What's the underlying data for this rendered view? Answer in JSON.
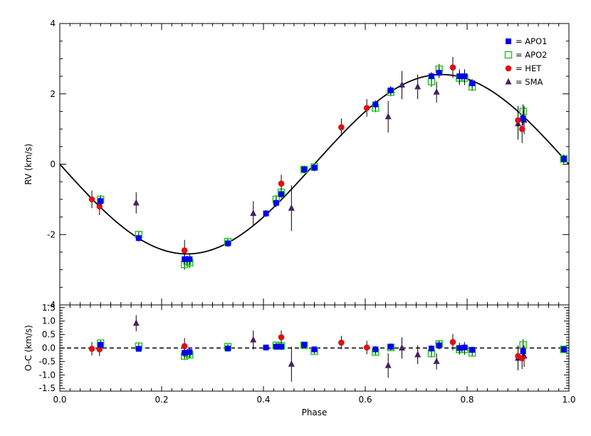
{
  "chart_data": [
    {
      "type": "scatter",
      "panel": "rv",
      "xlabel": "",
      "ylabel": "RV (km/s)",
      "xlim": [
        0.0,
        1.0
      ],
      "ylim": [
        -4,
        4
      ],
      "xticks": [
        "0.0",
        "0.2",
        "0.4",
        "0.6",
        "0.8",
        "1.0"
      ],
      "yticks": [
        "-4",
        "-2",
        "0",
        "2",
        "4"
      ],
      "model_curve": {
        "type": "sine",
        "amplitude": 2.55,
        "phase_of_minimum": 0.25
      },
      "legend_position": "top-right",
      "legend": [
        {
          "label": "= APO1",
          "marker": "filled-square",
          "color": "#0000ee"
        },
        {
          "label": "= APO2",
          "marker": "open-square",
          "color": "#22cc22"
        },
        {
          "label": "= HET",
          "marker": "filled-circle",
          "color": "#dd1111"
        },
        {
          "label": "= SMA",
          "marker": "filled-triangle",
          "color": "#442266"
        }
      ],
      "series": [
        {
          "name": "APO1",
          "x": [
            0.08,
            0.155,
            0.245,
            0.255,
            0.33,
            0.405,
            0.425,
            0.435,
            0.48,
            0.5,
            0.62,
            0.65,
            0.73,
            0.745,
            0.785,
            0.795,
            0.81,
            0.91,
            0.99
          ],
          "y": [
            -1.05,
            -2.1,
            -2.7,
            -2.7,
            -2.25,
            -1.4,
            -1.1,
            -0.85,
            -0.15,
            -0.1,
            1.7,
            2.1,
            2.5,
            2.6,
            2.5,
            2.5,
            2.3,
            1.3,
            0.15
          ],
          "yerr": [
            0.12,
            0.1,
            0.15,
            0.15,
            0.1,
            0.1,
            0.12,
            0.12,
            0.1,
            0.1,
            0.12,
            0.12,
            0.12,
            0.15,
            0.2,
            0.2,
            0.12,
            0.2,
            0.12
          ]
        },
        {
          "name": "APO2",
          "x": [
            0.08,
            0.155,
            0.245,
            0.25,
            0.255,
            0.33,
            0.425,
            0.435,
            0.48,
            0.5,
            0.62,
            0.65,
            0.73,
            0.745,
            0.785,
            0.795,
            0.81,
            0.91,
            0.99
          ],
          "y": [
            -1.0,
            -2.0,
            -2.85,
            -2.75,
            -2.8,
            -2.2,
            -1.0,
            -0.8,
            -0.15,
            -0.08,
            1.6,
            2.05,
            2.35,
            2.7,
            2.45,
            2.45,
            2.2,
            1.5,
            0.15
          ],
          "yerr": [
            0.12,
            0.1,
            0.15,
            0.15,
            0.15,
            0.1,
            0.12,
            0.12,
            0.1,
            0.1,
            0.12,
            0.12,
            0.15,
            0.15,
            0.2,
            0.2,
            0.12,
            0.2,
            0.12
          ]
        },
        {
          "name": "HET",
          "x": [
            0.063,
            0.078,
            0.245,
            0.435,
            0.553,
            0.603,
            0.772,
            0.9,
            0.908
          ],
          "y": [
            -1.0,
            -1.2,
            -2.45,
            -0.55,
            1.05,
            1.6,
            2.75,
            1.25,
            1.0
          ],
          "yerr": [
            0.25,
            0.25,
            0.3,
            0.25,
            0.25,
            0.25,
            0.3,
            0.4,
            0.4
          ]
        },
        {
          "name": "SMA",
          "x": [
            0.15,
            0.38,
            0.455,
            0.645,
            0.672,
            0.703,
            0.74,
            0.9,
            0.912
          ],
          "y": [
            -1.1,
            -1.4,
            -1.25,
            1.35,
            2.25,
            2.2,
            2.05,
            1.15,
            1.25
          ],
          "yerr": [
            0.3,
            0.35,
            0.65,
            0.45,
            0.4,
            0.35,
            0.3,
            0.45,
            0.4
          ]
        }
      ]
    },
    {
      "type": "scatter",
      "panel": "residuals",
      "xlabel": "Phase",
      "ylabel": "O-C (km/s)",
      "xlim": [
        0.0,
        1.0
      ],
      "ylim": [
        -1.6,
        1.6
      ],
      "xticks": [
        "0.0",
        "0.2",
        "0.4",
        "0.6",
        "0.8",
        "1.0"
      ],
      "yticks": [
        "-1.5",
        "-1.0",
        "-0.5",
        "0.0",
        "0.5",
        "1.0",
        "1.5"
      ],
      "reference_line": {
        "y": 0.0,
        "style": "dashed"
      },
      "series": [
        {
          "name": "APO1",
          "x": [
            0.08,
            0.155,
            0.245,
            0.255,
            0.33,
            0.405,
            0.425,
            0.435,
            0.48,
            0.5,
            0.62,
            0.65,
            0.73,
            0.745,
            0.785,
            0.795,
            0.81,
            0.91,
            0.99
          ],
          "y": [
            0.12,
            -0.03,
            -0.18,
            -0.15,
            -0.02,
            0.02,
            0.05,
            0.05,
            0.12,
            -0.05,
            -0.05,
            0.05,
            -0.02,
            0.1,
            0.0,
            0.02,
            -0.07,
            -0.12,
            -0.05
          ],
          "yerr": [
            0.12,
            0.1,
            0.15,
            0.15,
            0.1,
            0.1,
            0.12,
            0.12,
            0.1,
            0.1,
            0.12,
            0.12,
            0.12,
            0.15,
            0.2,
            0.2,
            0.12,
            0.2,
            0.12
          ]
        },
        {
          "name": "APO2",
          "x": [
            0.08,
            0.155,
            0.245,
            0.25,
            0.255,
            0.33,
            0.425,
            0.435,
            0.48,
            0.5,
            0.62,
            0.65,
            0.73,
            0.745,
            0.785,
            0.795,
            0.81,
            0.91,
            0.99
          ],
          "y": [
            0.18,
            0.07,
            -0.3,
            -0.2,
            -0.25,
            0.05,
            0.1,
            0.08,
            0.1,
            -0.12,
            -0.15,
            0.02,
            -0.2,
            0.15,
            -0.05,
            -0.05,
            -0.18,
            0.12,
            -0.05
          ],
          "yerr": [
            0.12,
            0.1,
            0.15,
            0.15,
            0.15,
            0.1,
            0.12,
            0.12,
            0.1,
            0.1,
            0.12,
            0.12,
            0.15,
            0.15,
            0.2,
            0.2,
            0.12,
            0.2,
            0.12
          ]
        },
        {
          "name": "HET",
          "x": [
            0.063,
            0.078,
            0.245,
            0.435,
            0.553,
            0.603,
            0.772,
            0.9,
            0.908
          ],
          "y": [
            -0.03,
            -0.05,
            0.07,
            0.4,
            0.2,
            0.02,
            0.22,
            -0.3,
            -0.38
          ],
          "yerr": [
            0.25,
            0.25,
            0.3,
            0.25,
            0.25,
            0.25,
            0.3,
            0.4,
            0.4
          ]
        },
        {
          "name": "SMA",
          "x": [
            0.15,
            0.38,
            0.455,
            0.645,
            0.672,
            0.703,
            0.74,
            0.9,
            0.912
          ],
          "y": [
            0.92,
            0.3,
            -0.6,
            -0.65,
            0.0,
            -0.25,
            -0.5,
            -0.38,
            -0.3
          ],
          "yerr": [
            0.3,
            0.35,
            0.65,
            0.45,
            0.4,
            0.35,
            0.3,
            0.45,
            0.4
          ]
        }
      ]
    }
  ]
}
